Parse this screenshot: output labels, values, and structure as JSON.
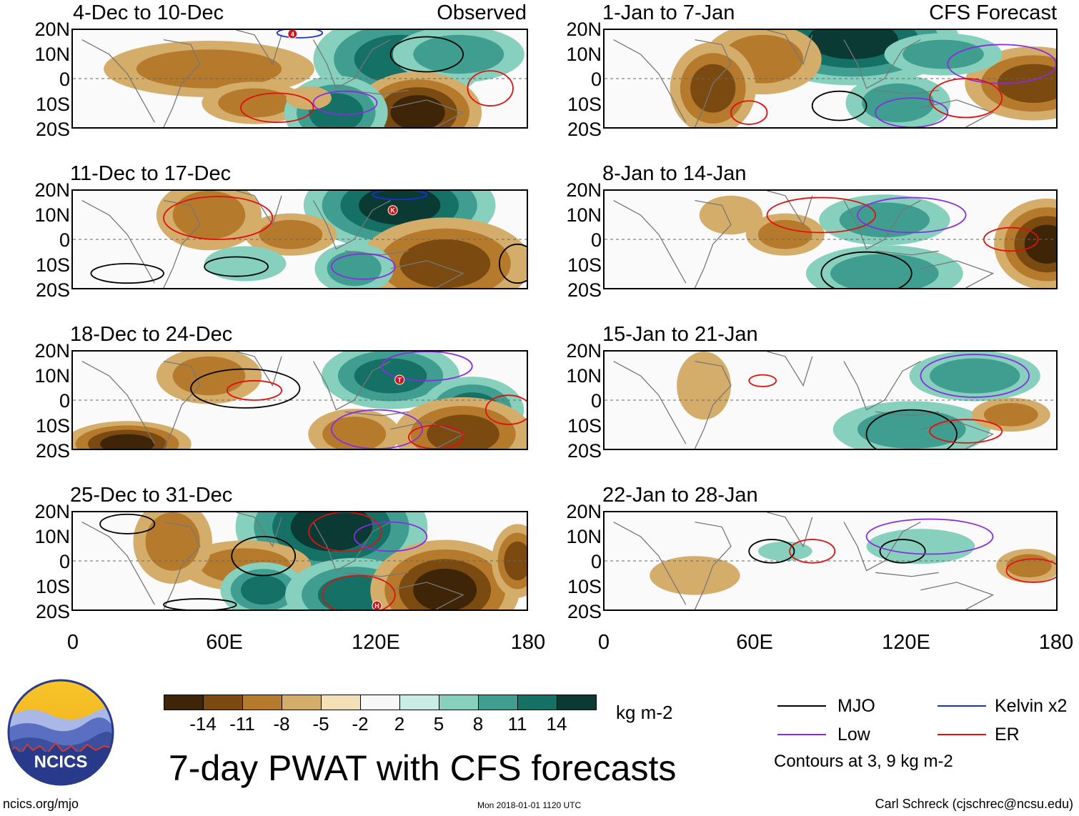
{
  "colors": {
    "mjo": "#000000",
    "low": "#8a2be2",
    "kelvin": "#1f2fd6",
    "er": "#e01010",
    "border": "#777777",
    "logo_sky": "#f2b61c",
    "logo_mountain": "#3c4f9e",
    "logo_text_bg": "#2a3a8a"
  },
  "panels": {
    "left": [
      {
        "title": "4-Dec to 10-Dec",
        "label": "Observed"
      },
      {
        "title": "11-Dec to 17-Dec",
        "label": ""
      },
      {
        "title": "18-Dec to 24-Dec",
        "label": ""
      },
      {
        "title": "25-Dec to 31-Dec",
        "label": ""
      }
    ],
    "right": [
      {
        "title": "1-Jan to 7-Jan",
        "label": "CFS Forecast"
      },
      {
        "title": "8-Jan to 14-Jan",
        "label": ""
      },
      {
        "title": "15-Jan to 21-Jan",
        "label": ""
      },
      {
        "title": "22-Jan to 28-Jan",
        "label": ""
      }
    ]
  },
  "latitude_labels": [
    "20N",
    "10N",
    "0",
    "10S",
    "20S"
  ],
  "longitude_labels": [
    "0",
    "60E",
    "120E",
    "180"
  ],
  "colorbar": {
    "colors": [
      "#3e2508",
      "#7a4a10",
      "#b57a2c",
      "#d4ad6a",
      "#f3e0b6",
      "#f7f7f7",
      "#c9ece4",
      "#86d0bd",
      "#3f9e8f",
      "#157065",
      "#0a3a33"
    ],
    "ticks": [
      "-14",
      "-11",
      "-8",
      "-5",
      "-2",
      "2",
      "5",
      "8",
      "11",
      "14"
    ],
    "units": "kg m-2"
  },
  "title": "7-day PWAT with CFS forecasts",
  "legend": {
    "mjo": "MJO",
    "kelvin": "Kelvin x2",
    "low": "Low",
    "er": "ER",
    "note": "Contours at 3, 9 kg m-2"
  },
  "logo_text": "NCICS",
  "footer": {
    "url": "ncics.org/mjo",
    "timestamp": "Mon 2018-01-01 1120 UTC",
    "author": "Carl Schreck (cjschrec@ncsu.edu)"
  },
  "storm_markers": [
    {
      "panel": "left-0",
      "symbol": "4"
    },
    {
      "panel": "left-1",
      "symbol": "K"
    },
    {
      "panel": "left-2",
      "symbol": "T"
    },
    {
      "panel": "left-3",
      "symbol": "H"
    }
  ]
}
